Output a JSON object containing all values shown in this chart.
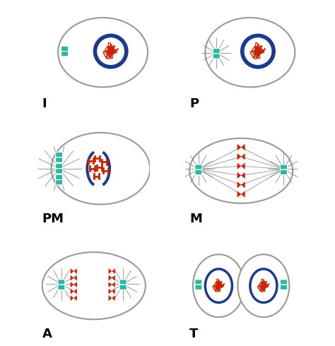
{
  "panels": [
    "I",
    "P",
    "PM",
    "M",
    "A",
    "T"
  ],
  "cell_edge": "#999999",
  "nucleus_edge": "#1a3a8a",
  "chromatin_color": "#cc2200",
  "centrosome_color": "#2ab8a0",
  "spindle_color": "#777777",
  "dark_blue": "#1a3a8a",
  "background": "#ffffff",
  "label_fontsize": 13
}
